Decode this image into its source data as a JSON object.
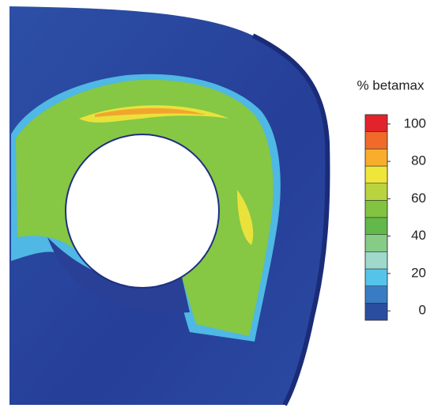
{
  "chart_data": {
    "type": "contour",
    "colorbar": {
      "title": "% betamax",
      "ylim": [
        -5,
        105
      ],
      "yticks": [
        0,
        20,
        40,
        60,
        80,
        100
      ],
      "colors": [
        "#2b4d9e",
        "#3a7cc4",
        "#56c3ea",
        "#9fd9cc",
        "#86cb86",
        "#62b84a",
        "#82c341",
        "#b9d43e",
        "#efe63a",
        "#f8ae2c",
        "#f06a2a",
        "#e3232b"
      ]
    }
  }
}
